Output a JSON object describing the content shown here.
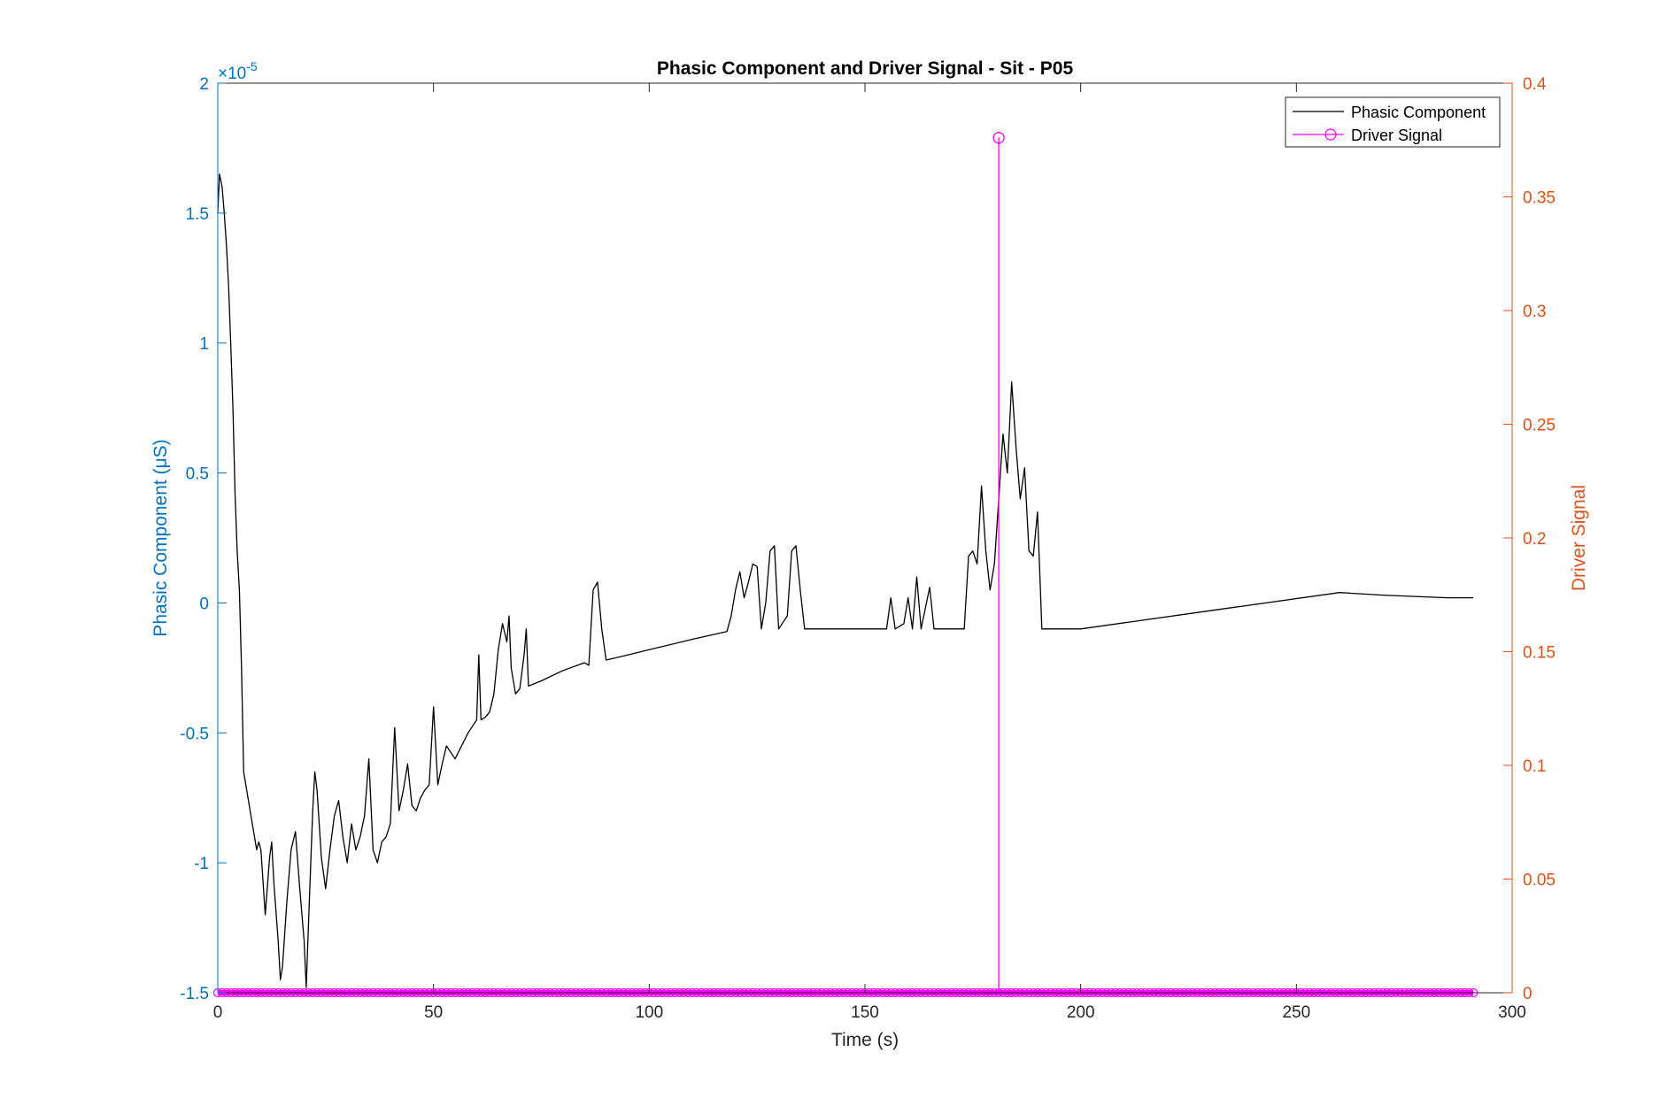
{
  "chart_data": {
    "type": "line",
    "title": "Phasic Component and Driver Signal - Sit - P05",
    "xlabel": "Time (s)",
    "ylabel_left": "Phasic Component (μS)",
    "ylabel_right": "Driver Signal",
    "exponent_label": "×10",
    "exponent_power": "-5",
    "xlim": [
      0,
      300
    ],
    "ylim_left": [
      -1.5,
      2
    ],
    "ylim_right": [
      0,
      0.4
    ],
    "xticks": [
      "0",
      "50",
      "100",
      "150",
      "200",
      "250",
      "300"
    ],
    "yticks_left": [
      "-1.5",
      "-1",
      "-0.5",
      "0",
      "0.5",
      "1",
      "1.5",
      "2"
    ],
    "yticks_right": [
      "0",
      "0.05",
      "0.1",
      "0.15",
      "0.2",
      "0.25",
      "0.3",
      "0.35",
      "0.4"
    ],
    "grid": false,
    "legend_position": "top-right",
    "colors": {
      "left_axis": "#0072BD",
      "right_axis": "#D95319",
      "phasic": "#000000",
      "driver": "#FF00FF"
    },
    "series": [
      {
        "name": "Phasic Component",
        "axis": "left",
        "units": "×10^-5 μS",
        "points": [
          [
            0,
            1.5
          ],
          [
            0.4,
            1.65
          ],
          [
            1,
            1.6
          ],
          [
            1.5,
            1.5
          ],
          [
            2,
            1.38
          ],
          [
            2.5,
            1.22
          ],
          [
            3,
            1.0
          ],
          [
            3.5,
            0.75
          ],
          [
            4,
            0.42
          ],
          [
            4.5,
            0.2
          ],
          [
            5,
            0.05
          ],
          [
            5.5,
            -0.25
          ],
          [
            6,
            -0.65
          ],
          [
            7,
            -0.75
          ],
          [
            8,
            -0.85
          ],
          [
            9,
            -0.95
          ],
          [
            9.5,
            -0.92
          ],
          [
            10,
            -0.95
          ],
          [
            11,
            -1.2
          ],
          [
            12,
            -0.98
          ],
          [
            12.5,
            -0.92
          ],
          [
            13,
            -1.08
          ],
          [
            14,
            -1.3
          ],
          [
            14.5,
            -1.45
          ],
          [
            15,
            -1.4
          ],
          [
            16,
            -1.15
          ],
          [
            17,
            -0.95
          ],
          [
            18,
            -0.88
          ],
          [
            19,
            -1.1
          ],
          [
            20,
            -1.3
          ],
          [
            20.5,
            -1.48
          ],
          [
            21,
            -1.25
          ],
          [
            22,
            -0.8
          ],
          [
            22.5,
            -0.65
          ],
          [
            23,
            -0.72
          ],
          [
            24,
            -0.98
          ],
          [
            25,
            -1.1
          ],
          [
            26,
            -0.95
          ],
          [
            27,
            -0.82
          ],
          [
            28,
            -0.76
          ],
          [
            29,
            -0.9
          ],
          [
            30,
            -1.0
          ],
          [
            31,
            -0.85
          ],
          [
            32,
            -0.95
          ],
          [
            33,
            -0.9
          ],
          [
            34,
            -0.82
          ],
          [
            35,
            -0.6
          ],
          [
            36,
            -0.95
          ],
          [
            37,
            -1.0
          ],
          [
            38,
            -0.92
          ],
          [
            39,
            -0.9
          ],
          [
            40,
            -0.85
          ],
          [
            41,
            -0.48
          ],
          [
            42,
            -0.8
          ],
          [
            43,
            -0.72
          ],
          [
            44,
            -0.62
          ],
          [
            45,
            -0.78
          ],
          [
            46,
            -0.8
          ],
          [
            47,
            -0.75
          ],
          [
            48,
            -0.72
          ],
          [
            49,
            -0.7
          ],
          [
            50,
            -0.4
          ],
          [
            51,
            -0.7
          ],
          [
            52,
            -0.62
          ],
          [
            53,
            -0.55
          ],
          [
            55,
            -0.6
          ],
          [
            58,
            -0.5
          ],
          [
            60,
            -0.45
          ],
          [
            60.5,
            -0.2
          ],
          [
            61,
            -0.45
          ],
          [
            62,
            -0.44
          ],
          [
            63,
            -0.42
          ],
          [
            64,
            -0.35
          ],
          [
            65,
            -0.18
          ],
          [
            66,
            -0.08
          ],
          [
            67,
            -0.15
          ],
          [
            67.5,
            -0.05
          ],
          [
            68,
            -0.25
          ],
          [
            69,
            -0.35
          ],
          [
            70,
            -0.33
          ],
          [
            71,
            -0.2
          ],
          [
            71.5,
            -0.1
          ],
          [
            72,
            -0.32
          ],
          [
            75,
            -0.3
          ],
          [
            80,
            -0.26
          ],
          [
            85,
            -0.23
          ],
          [
            86,
            -0.24
          ],
          [
            87,
            0.05
          ],
          [
            88,
            0.08
          ],
          [
            89,
            -0.1
          ],
          [
            90,
            -0.22
          ],
          [
            95,
            -0.2
          ],
          [
            100,
            -0.18
          ],
          [
            110,
            -0.14
          ],
          [
            118,
            -0.11
          ],
          [
            119,
            -0.05
          ],
          [
            120,
            0.05
          ],
          [
            121,
            0.12
          ],
          [
            122,
            0.02
          ],
          [
            123,
            0.08
          ],
          [
            124,
            0.15
          ],
          [
            125,
            0.14
          ],
          [
            126,
            -0.1
          ],
          [
            127,
            0.0
          ],
          [
            128,
            0.2
          ],
          [
            129,
            0.22
          ],
          [
            130,
            -0.1
          ],
          [
            132,
            -0.05
          ],
          [
            133,
            0.2
          ],
          [
            134,
            0.22
          ],
          [
            135,
            0.05
          ],
          [
            136,
            -0.1
          ],
          [
            140,
            -0.1
          ],
          [
            150,
            -0.1
          ],
          [
            155,
            -0.1
          ],
          [
            156,
            0.02
          ],
          [
            157,
            -0.1
          ],
          [
            159,
            -0.08
          ],
          [
            160,
            0.02
          ],
          [
            161,
            -0.1
          ],
          [
            162,
            0.1
          ],
          [
            163,
            -0.1
          ],
          [
            165,
            0.06
          ],
          [
            166,
            -0.1
          ],
          [
            168,
            -0.1
          ],
          [
            173,
            -0.1
          ],
          [
            174,
            0.18
          ],
          [
            175,
            0.2
          ],
          [
            176,
            0.15
          ],
          [
            177,
            0.45
          ],
          [
            178,
            0.2
          ],
          [
            179,
            0.05
          ],
          [
            180,
            0.15
          ],
          [
            181,
            0.4
          ],
          [
            182,
            0.65
          ],
          [
            183,
            0.5
          ],
          [
            184,
            0.85
          ],
          [
            185,
            0.6
          ],
          [
            186,
            0.4
          ],
          [
            187,
            0.52
          ],
          [
            188,
            0.2
          ],
          [
            189,
            0.18
          ],
          [
            190,
            0.35
          ],
          [
            191,
            -0.1
          ],
          [
            195,
            -0.1
          ],
          [
            200,
            -0.1
          ],
          [
            230,
            -0.03
          ],
          [
            260,
            0.04
          ],
          [
            270,
            0.03
          ],
          [
            285,
            0.02
          ],
          [
            291,
            0.02
          ]
        ]
      },
      {
        "name": "Driver Signal",
        "axis": "right",
        "type": "stem",
        "x_start": 0,
        "x_end": 291,
        "baseline": 0,
        "spike": {
          "x": 181,
          "value": 0.376
        }
      }
    ]
  }
}
